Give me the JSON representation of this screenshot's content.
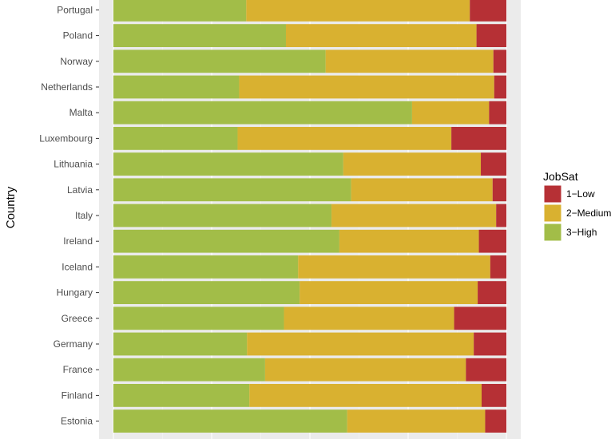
{
  "chart_data": {
    "type": "bar",
    "orientation": "horizontal",
    "stacked": "percent",
    "categories": [
      "Portugal",
      "Poland",
      "Norway",
      "Netherlands",
      "Malta",
      "Luxembourg",
      "Lithuania",
      "Latvia",
      "Italy",
      "Ireland",
      "Iceland",
      "Hungary",
      "Greece",
      "Germany",
      "France",
      "Finland",
      "Estonia"
    ],
    "series": [
      {
        "name": "3−High",
        "color": "#a2bd48",
        "values": [
          0.338,
          0.439,
          0.54,
          0.32,
          0.76,
          0.316,
          0.585,
          0.605,
          0.555,
          0.575,
          0.47,
          0.474,
          0.434,
          0.34,
          0.386,
          0.346,
          0.595
        ]
      },
      {
        "name": "2−Medium",
        "color": "#d9b130",
        "values": [
          0.569,
          0.485,
          0.427,
          0.649,
          0.196,
          0.544,
          0.35,
          0.36,
          0.419,
          0.355,
          0.489,
          0.453,
          0.433,
          0.577,
          0.511,
          0.591,
          0.351
        ]
      },
      {
        "name": "1−Low",
        "color": "#b63035",
        "values": [
          0.093,
          0.076,
          0.033,
          0.031,
          0.044,
          0.14,
          0.065,
          0.035,
          0.026,
          0.07,
          0.041,
          0.073,
          0.133,
          0.083,
          0.103,
          0.063,
          0.054
        ]
      }
    ],
    "xlim": [
      0,
      1
    ],
    "ylabel": "Country",
    "legend": {
      "title": "JobSat",
      "entries": [
        "1−Low",
        "2−Medium",
        "3−High"
      ],
      "placement": "right"
    },
    "panel_background": "#ebebeb",
    "grid": true
  }
}
